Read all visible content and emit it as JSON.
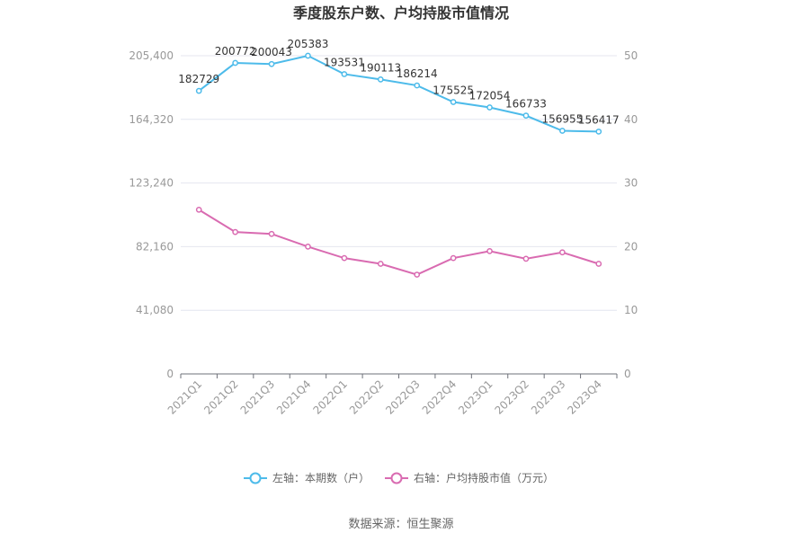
{
  "chart_data": {
    "type": "line",
    "title": "季度股东户数、户均持股市值情况",
    "categories": [
      "2021Q1",
      "2021Q2",
      "2021Q3",
      "2021Q4",
      "2022Q1",
      "2022Q2",
      "2022Q3",
      "2022Q4",
      "2023Q1",
      "2023Q2",
      "2023Q3",
      "2023Q4"
    ],
    "series": [
      {
        "name": "左轴：本期数（户）",
        "axis": "left",
        "color": "#4dbbea",
        "values": [
          182729,
          200772,
          200043,
          205383,
          193531,
          190113,
          186214,
          175525,
          172054,
          166733,
          156955,
          156417
        ],
        "labels": [
          "182729",
          "200772",
          "200043",
          "205383",
          "193531",
          "190113",
          "186214",
          "175525",
          "172054",
          "166733",
          "156955",
          "156417"
        ]
      },
      {
        "name": "右轴：户均持股市值（万元）",
        "axis": "right",
        "color": "#d96bb1",
        "values": [
          25.8,
          22.3,
          22.0,
          20.0,
          18.2,
          17.3,
          15.6,
          18.2,
          19.3,
          18.1,
          19.1,
          17.3
        ]
      }
    ],
    "y_left": {
      "ylim": [
        0,
        205400
      ],
      "ticks": [
        0,
        41080,
        82160,
        123240,
        164320,
        205400
      ],
      "tick_labels": [
        "0",
        "41,080",
        "82,160",
        "123,240",
        "164,320",
        "205,400"
      ]
    },
    "y_right": {
      "ylim": [
        0,
        50
      ],
      "ticks": [
        0,
        10,
        20,
        30,
        40,
        50
      ],
      "tick_labels": [
        "0",
        "10",
        "20",
        "30",
        "40",
        "50"
      ]
    },
    "grid": true,
    "legend_position": "bottom"
  },
  "source": "数据来源：恒生聚源"
}
